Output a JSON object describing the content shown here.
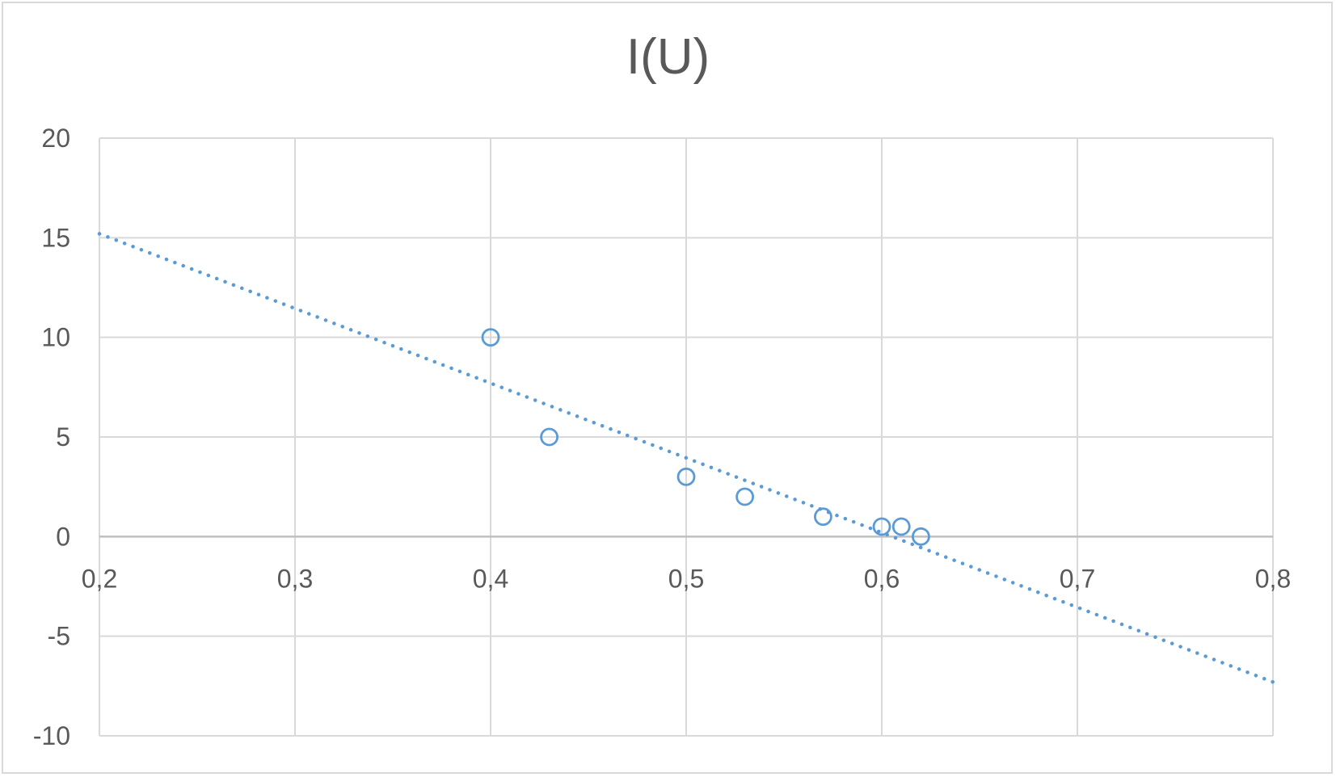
{
  "chart_data": {
    "type": "scatter",
    "title": "I(U)",
    "xlabel": "",
    "ylabel": "",
    "xlim": [
      0.2,
      0.8
    ],
    "ylim": [
      -10,
      20
    ],
    "x_ticks": [
      0.2,
      0.3,
      0.4,
      0.5,
      0.6,
      0.7,
      0.8
    ],
    "x_tick_labels": [
      "0,2",
      "0,3",
      "0,4",
      "0,5",
      "0,6",
      "0,7",
      "0,8"
    ],
    "y_ticks": [
      -10,
      -5,
      0,
      5,
      10,
      15,
      20
    ],
    "y_tick_labels": [
      "-10",
      "-5",
      "0",
      "5",
      "10",
      "15",
      "20"
    ],
    "grid": true,
    "legend": "none",
    "series": [
      {
        "x": [
          0.4,
          0.43,
          0.5,
          0.53,
          0.57,
          0.6,
          0.61,
          0.62
        ],
        "y": [
          10,
          5,
          3,
          2,
          1,
          0.5,
          0.5,
          0
        ],
        "marker": "open-circle",
        "color": "#5b9bd5"
      }
    ],
    "trendline": {
      "type": "linear",
      "style": "dotted",
      "color": "#5b9bd5",
      "x": [
        0.2,
        0.8
      ],
      "y": [
        15.2,
        -7.3
      ]
    }
  },
  "colors": {
    "grid": "#d9d9d9",
    "axis": "#bfbfbf",
    "text": "#595959",
    "series": "#5b9bd5"
  }
}
